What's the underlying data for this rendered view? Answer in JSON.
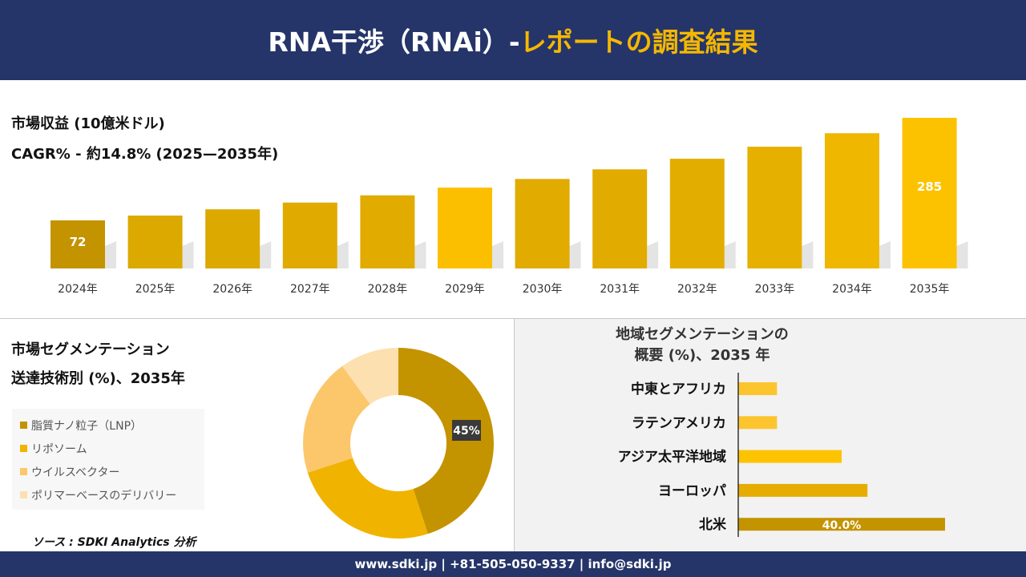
{
  "header": {
    "title_main": "RNA干渉（RNAi）-",
    "title_accent": "レポートの調査結果"
  },
  "footer": {
    "contact": "www.sdki.jp | +81-505-050-9337 | info@sdki.jp"
  },
  "revenue": {
    "title": "市場収益 (10億米ドル)",
    "cagr": "CAGR% - 約14.8% (2025—2035年)"
  },
  "segmentation": {
    "title1": "市場セグメンテーション",
    "title2": "送達技術別 (%)、2035年"
  },
  "region": {
    "title1": "地域セグメンテーションの",
    "title2": "概要 (%)、2035 年"
  },
  "source": "ソース : SDKI Analytics 分析",
  "colors": {
    "navy": "#253569",
    "accent": "#f5b800"
  },
  "chart_data": [
    {
      "type": "bar",
      "title": "市場収益 (10億米ドル)",
      "categories": [
        "2024年",
        "2025年",
        "2026年",
        "2027年",
        "2028年",
        "2029年",
        "2030年",
        "2031年",
        "2032年",
        "2033年",
        "2034年",
        "2035年"
      ],
      "values": [
        72,
        82,
        95,
        109,
        124,
        140,
        158,
        178,
        200,
        225,
        253,
        285
      ],
      "data_labels": {
        "0": "72",
        "11": "285"
      },
      "colors": [
        "#c49300",
        "#dba900",
        "#dba900",
        "#e0aa00",
        "#e2ab00",
        "#fbbf00",
        "#e2ab00",
        "#e2ab00",
        "#e3ad00",
        "#e6b000",
        "#efb700",
        "#fcc200"
      ]
    },
    {
      "type": "pie",
      "donut": true,
      "categories": [
        "脂質ナノ粒子（LNP）",
        "リポソーム",
        "ウイルスベクター",
        "ポリマーベースのデリバリー"
      ],
      "values": [
        45,
        25,
        20,
        10
      ],
      "data_labels": {
        "0": "45%"
      },
      "colors": [
        "#c49300",
        "#f0b400",
        "#fcc76a",
        "#fde0b0"
      ]
    },
    {
      "type": "bar",
      "orientation": "horizontal",
      "title": "地域セグメンテーションの概要 (%)、2035 年",
      "categories": [
        "中東とアフリカ",
        "ラテンアメリカ",
        "アジア太平洋地域",
        "ヨーロッパ",
        "北米"
      ],
      "values": [
        7.5,
        7.5,
        20,
        25,
        40
      ],
      "data_labels": {
        "4": "40.0%"
      },
      "colors": [
        "#fcc52e",
        "#fcc52e",
        "#fdc300",
        "#e6ad00",
        "#c49300"
      ]
    }
  ]
}
